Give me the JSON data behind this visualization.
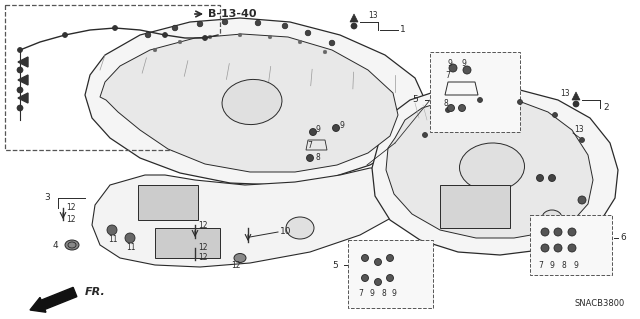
{
  "bg_color": "#ffffff",
  "fig_width": 6.4,
  "fig_height": 3.19,
  "dpi": 100,
  "diagram_code": "SNACB3800",
  "ref_code": "B-13-40",
  "line_color": "#2a2a2a",
  "label_fontsize": 6.5,
  "fill_color": "#f0f0f0",
  "edge_color": "#1a1a1a"
}
